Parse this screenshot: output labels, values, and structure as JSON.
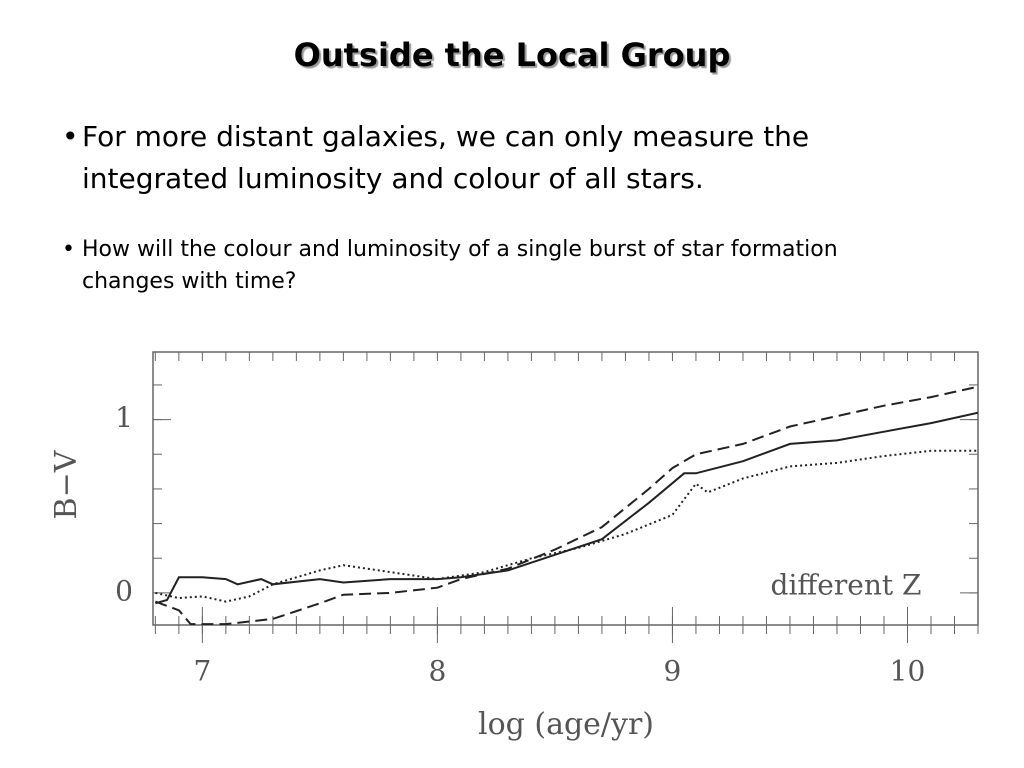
{
  "slide": {
    "title": "Outside the Local Group",
    "bullets": [
      "For more distant galaxies, we can only measure the integrated luminosity and colour of all stars.",
      "How will the colour and luminosity of a single burst of star formation changes with time?"
    ]
  },
  "chart_data": {
    "type": "line",
    "x_label": "log (age/yr)",
    "y_label": "B−V",
    "annotation": "different Z",
    "xlim": [
      6.79,
      10.3
    ],
    "ylim": [
      -0.185,
      1.39
    ],
    "xticks": [
      7,
      8,
      9,
      10
    ],
    "yticks": [
      0,
      1
    ],
    "xminor_step": 0.1,
    "yminor_step": 0.2,
    "series": [
      {
        "color": "#222222",
        "dash": "solid",
        "x": [
          6.8,
          6.85,
          6.9,
          7.0,
          7.1,
          7.15,
          7.25,
          7.3,
          7.5,
          7.6,
          7.8,
          8.0,
          8.1,
          8.3,
          8.5,
          8.7,
          8.9,
          9.05,
          9.1,
          9.3,
          9.5,
          9.7,
          9.9,
          10.1,
          10.3
        ],
        "values": [
          -0.06,
          -0.04,
          0.09,
          0.09,
          0.08,
          0.05,
          0.08,
          0.05,
          0.08,
          0.06,
          0.08,
          0.08,
          0.09,
          0.13,
          0.22,
          0.31,
          0.52,
          0.69,
          0.69,
          0.76,
          0.86,
          0.88,
          0.93,
          0.98,
          1.04
        ]
      },
      {
        "color": "#222222",
        "dash": "dashed",
        "x": [
          6.8,
          6.9,
          6.95,
          7.1,
          7.3,
          7.5,
          7.6,
          7.8,
          8.0,
          8.1,
          8.3,
          8.5,
          8.7,
          8.9,
          9.0,
          9.1,
          9.3,
          9.5,
          9.7,
          9.9,
          10.1,
          10.3
        ],
        "values": [
          -0.05,
          -0.1,
          -0.18,
          -0.18,
          -0.15,
          -0.06,
          -0.01,
          0.0,
          0.03,
          0.08,
          0.14,
          0.25,
          0.38,
          0.6,
          0.72,
          0.8,
          0.86,
          0.96,
          1.02,
          1.08,
          1.13,
          1.19
        ]
      },
      {
        "color": "#222222",
        "dash": "dotted",
        "x": [
          6.8,
          6.9,
          7.0,
          7.1,
          7.2,
          7.3,
          7.5,
          7.6,
          7.8,
          8.0,
          8.2,
          8.4,
          8.6,
          8.8,
          9.0,
          9.1,
          9.15,
          9.3,
          9.5,
          9.7,
          9.9,
          10.1,
          10.3
        ],
        "values": [
          0.0,
          -0.03,
          -0.02,
          -0.05,
          -0.02,
          0.05,
          0.13,
          0.16,
          0.12,
          0.08,
          0.12,
          0.2,
          0.26,
          0.34,
          0.45,
          0.63,
          0.58,
          0.66,
          0.73,
          0.75,
          0.79,
          0.82,
          0.82
        ]
      }
    ]
  }
}
